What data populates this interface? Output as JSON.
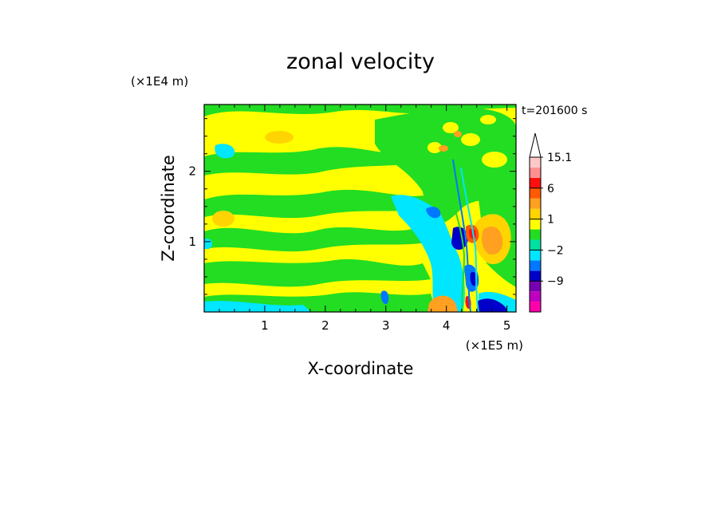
{
  "chart_data": {
    "type": "heatmap",
    "title": "zonal velocity",
    "xlabel": "X-coordinate",
    "ylabel": "Z-coordinate",
    "x_unit": "(×1E5 m)",
    "y_unit": "(×1E4 m)",
    "time_label": "t=201600 s",
    "xlim": [
      0,
      5.15
    ],
    "ylim": [
      0,
      2.95
    ],
    "x_ticks": [
      1,
      2,
      3,
      4,
      5
    ],
    "y_ticks": [
      1,
      2
    ],
    "colorbar": {
      "levels": [
        -15,
        -12,
        -9,
        -6,
        -3,
        -2,
        -1,
        0,
        1,
        2,
        3,
        6,
        9,
        12,
        15.1
      ],
      "colors": [
        "#ff00aa",
        "#c000c0",
        "#7800b4",
        "#0000c8",
        "#0078ff",
        "#00e6ff",
        "#00e0a0",
        "#22dd22",
        "#ffff00",
        "#ffd400",
        "#ffa020",
        "#ff5a00",
        "#ff1010",
        "#ff9090",
        "#ffc8c8"
      ],
      "labels": [
        "15.1",
        "6",
        "1",
        "-2",
        "-9"
      ],
      "extend_top": true
    },
    "note": "Zonal velocity field: alternating yellow (weak positive) and green (near-zero) layers across the domain, with a strong perturbation around x≈4.2–4.6 ×1E5 m containing blue (negative) and red/orange (positive) cores."
  }
}
